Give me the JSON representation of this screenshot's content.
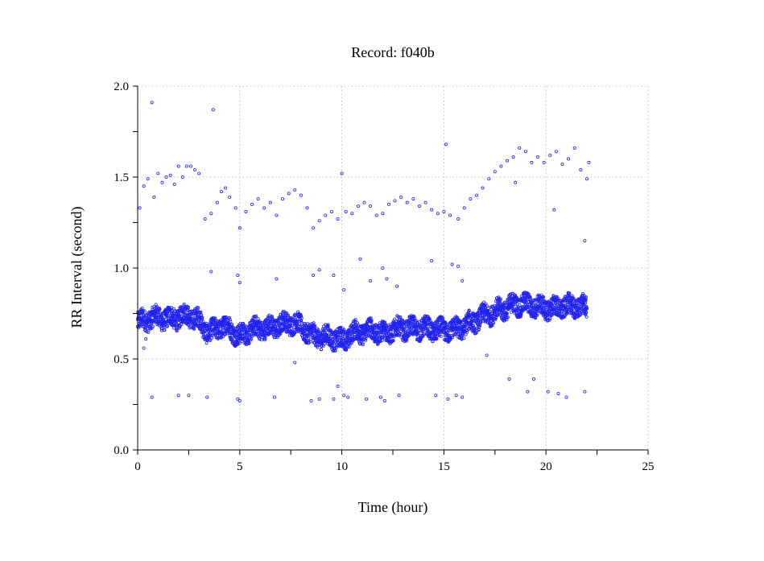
{
  "chart_data": {
    "type": "scatter",
    "title": "Record:  f040b",
    "xlabel": "Time (hour)",
    "ylabel": "RR Interval (second)",
    "xlim": [
      0,
      25
    ],
    "ylim": [
      0,
      2
    ],
    "xticks": [
      0,
      5,
      10,
      15,
      20,
      25
    ],
    "xtick_labels": [
      "0",
      "5",
      "10",
      "15",
      "20",
      "25"
    ],
    "yticks": [
      0,
      0.5,
      1.0,
      1.5,
      2.0
    ],
    "ytick_labels": [
      "0.0",
      "0.5",
      "1.0",
      "1.5",
      "2.0"
    ],
    "grid": true,
    "marker_color": "#2222ee",
    "trend": [
      [
        0.0,
        0.7
      ],
      [
        0.5,
        0.72
      ],
      [
        1.0,
        0.73
      ],
      [
        1.5,
        0.72
      ],
      [
        2.0,
        0.73
      ],
      [
        2.5,
        0.74
      ],
      [
        3.0,
        0.71
      ],
      [
        3.5,
        0.64
      ],
      [
        4.0,
        0.68
      ],
      [
        4.5,
        0.67
      ],
      [
        5.0,
        0.62
      ],
      [
        5.5,
        0.66
      ],
      [
        6.0,
        0.67
      ],
      [
        6.5,
        0.67
      ],
      [
        7.0,
        0.69
      ],
      [
        7.5,
        0.7
      ],
      [
        8.0,
        0.68
      ],
      [
        8.5,
        0.63
      ],
      [
        9.0,
        0.62
      ],
      [
        9.5,
        0.62
      ],
      [
        10.0,
        0.6
      ],
      [
        10.5,
        0.64
      ],
      [
        11.0,
        0.65
      ],
      [
        11.5,
        0.66
      ],
      [
        12.0,
        0.64
      ],
      [
        12.5,
        0.66
      ],
      [
        13.0,
        0.67
      ],
      [
        13.5,
        0.67
      ],
      [
        14.0,
        0.67
      ],
      [
        14.5,
        0.66
      ],
      [
        15.0,
        0.66
      ],
      [
        15.5,
        0.66
      ],
      [
        16.0,
        0.68
      ],
      [
        16.5,
        0.71
      ],
      [
        17.0,
        0.74
      ],
      [
        17.5,
        0.76
      ],
      [
        18.0,
        0.78
      ],
      [
        18.5,
        0.8
      ],
      [
        19.0,
        0.8
      ],
      [
        19.5,
        0.79
      ],
      [
        20.0,
        0.78
      ],
      [
        20.5,
        0.78
      ],
      [
        21.0,
        0.79
      ],
      [
        21.5,
        0.79
      ],
      [
        22.0,
        0.78
      ]
    ],
    "band_halfwidth": 0.055,
    "outliers": [
      [
        0.7,
        1.91
      ],
      [
        3.7,
        1.87
      ],
      [
        15.1,
        1.68
      ],
      [
        10.0,
        1.52
      ],
      [
        0.1,
        1.33
      ],
      [
        0.3,
        1.45
      ],
      [
        0.5,
        1.49
      ],
      [
        0.8,
        1.39
      ],
      [
        1.0,
        1.52
      ],
      [
        1.2,
        1.47
      ],
      [
        1.4,
        1.5
      ],
      [
        1.6,
        1.51
      ],
      [
        1.8,
        1.46
      ],
      [
        2.0,
        1.56
      ],
      [
        2.2,
        1.5
      ],
      [
        2.4,
        1.56
      ],
      [
        2.6,
        1.56
      ],
      [
        2.8,
        1.54
      ],
      [
        3.0,
        1.52
      ],
      [
        3.3,
        1.27
      ],
      [
        3.6,
        1.3
      ],
      [
        3.9,
        1.36
      ],
      [
        4.1,
        1.42
      ],
      [
        4.3,
        1.44
      ],
      [
        4.5,
        1.39
      ],
      [
        4.8,
        1.33
      ],
      [
        5.0,
        1.22
      ],
      [
        5.3,
        1.31
      ],
      [
        5.6,
        1.35
      ],
      [
        5.9,
        1.38
      ],
      [
        6.2,
        1.33
      ],
      [
        6.5,
        1.36
      ],
      [
        6.8,
        1.29
      ],
      [
        7.1,
        1.38
      ],
      [
        7.4,
        1.41
      ],
      [
        7.7,
        1.43
      ],
      [
        8.0,
        1.4
      ],
      [
        8.3,
        1.33
      ],
      [
        8.6,
        1.22
      ],
      [
        8.9,
        1.26
      ],
      [
        9.2,
        1.29
      ],
      [
        9.5,
        1.31
      ],
      [
        9.8,
        1.27
      ],
      [
        10.2,
        1.31
      ],
      [
        10.5,
        1.3
      ],
      [
        10.8,
        1.34
      ],
      [
        11.1,
        1.36
      ],
      [
        11.4,
        1.34
      ],
      [
        11.7,
        1.29
      ],
      [
        12.0,
        1.3
      ],
      [
        12.3,
        1.35
      ],
      [
        12.6,
        1.37
      ],
      [
        12.9,
        1.39
      ],
      [
        13.2,
        1.36
      ],
      [
        13.5,
        1.38
      ],
      [
        13.8,
        1.34
      ],
      [
        14.1,
        1.36
      ],
      [
        14.4,
        1.32
      ],
      [
        14.7,
        1.3
      ],
      [
        15.0,
        1.31
      ],
      [
        15.3,
        1.29
      ],
      [
        15.7,
        1.27
      ],
      [
        16.0,
        1.33
      ],
      [
        16.3,
        1.38
      ],
      [
        16.6,
        1.4
      ],
      [
        16.9,
        1.44
      ],
      [
        17.2,
        1.49
      ],
      [
        17.5,
        1.53
      ],
      [
        17.8,
        1.56
      ],
      [
        18.1,
        1.59
      ],
      [
        18.4,
        1.61
      ],
      [
        18.7,
        1.66
      ],
      [
        19.0,
        1.64
      ],
      [
        19.3,
        1.58
      ],
      [
        19.6,
        1.61
      ],
      [
        19.9,
        1.58
      ],
      [
        20.2,
        1.62
      ],
      [
        20.5,
        1.64
      ],
      [
        20.8,
        1.57
      ],
      [
        21.1,
        1.6
      ],
      [
        21.4,
        1.66
      ],
      [
        21.7,
        1.54
      ],
      [
        22.0,
        1.49
      ],
      [
        22.1,
        1.58
      ],
      [
        21.9,
        1.15
      ],
      [
        18.5,
        1.47
      ],
      [
        20.4,
        1.32
      ],
      [
        3.6,
        0.98
      ],
      [
        4.9,
        0.96
      ],
      [
        5.0,
        0.92
      ],
      [
        6.8,
        0.94
      ],
      [
        8.6,
        0.96
      ],
      [
        8.9,
        0.99
      ],
      [
        9.6,
        0.96
      ],
      [
        10.1,
        0.88
      ],
      [
        10.9,
        1.05
      ],
      [
        11.4,
        0.93
      ],
      [
        12.0,
        1.0
      ],
      [
        12.2,
        0.94
      ],
      [
        12.7,
        0.9
      ],
      [
        14.4,
        1.04
      ],
      [
        15.4,
        1.02
      ],
      [
        15.7,
        1.01
      ],
      [
        15.9,
        0.93
      ],
      [
        0.3,
        0.56
      ],
      [
        0.4,
        0.61
      ],
      [
        17.1,
        0.52
      ],
      [
        7.7,
        0.48
      ],
      [
        0.7,
        0.29
      ],
      [
        2.0,
        0.3
      ],
      [
        2.5,
        0.3
      ],
      [
        3.4,
        0.29
      ],
      [
        4.9,
        0.28
      ],
      [
        5.0,
        0.27
      ],
      [
        6.7,
        0.29
      ],
      [
        8.5,
        0.27
      ],
      [
        8.9,
        0.28
      ],
      [
        9.6,
        0.28
      ],
      [
        9.8,
        0.35
      ],
      [
        10.1,
        0.3
      ],
      [
        10.3,
        0.29
      ],
      [
        11.2,
        0.28
      ],
      [
        11.9,
        0.29
      ],
      [
        12.1,
        0.27
      ],
      [
        12.8,
        0.3
      ],
      [
        14.6,
        0.3
      ],
      [
        15.2,
        0.28
      ],
      [
        15.6,
        0.3
      ],
      [
        15.9,
        0.29
      ],
      [
        18.2,
        0.39
      ],
      [
        19.1,
        0.32
      ],
      [
        19.4,
        0.39
      ],
      [
        20.1,
        0.32
      ],
      [
        20.6,
        0.31
      ],
      [
        21.0,
        0.29
      ],
      [
        21.9,
        0.32
      ]
    ]
  }
}
